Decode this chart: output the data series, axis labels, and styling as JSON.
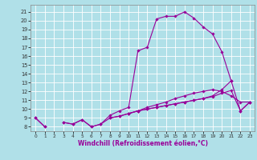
{
  "xlabel": "Windchill (Refroidissement éolien,°C)",
  "color": "#990099",
  "bg_color": "#b0e0e8",
  "grid_color": "#ffffff",
  "ylim": [
    7.5,
    21.8
  ],
  "xlim": [
    -0.5,
    23.5
  ],
  "yticks": [
    8,
    9,
    10,
    11,
    12,
    13,
    14,
    15,
    16,
    17,
    18,
    19,
    20,
    21
  ],
  "xticks": [
    0,
    1,
    2,
    3,
    4,
    5,
    6,
    7,
    8,
    9,
    10,
    11,
    12,
    13,
    14,
    15,
    16,
    17,
    18,
    19,
    20,
    21,
    22,
    23
  ],
  "y_main": [
    9.0,
    8.0,
    null,
    8.5,
    8.3,
    8.8,
    8.0,
    8.3,
    9.3,
    9.8,
    10.2,
    16.6,
    17.0,
    20.2,
    20.5,
    20.5,
    21.0,
    20.3,
    19.3,
    18.5,
    16.5,
    13.2,
    null,
    null
  ],
  "y_flat1": [
    9.0,
    8.0,
    null,
    8.5,
    8.3,
    8.8,
    8.0,
    8.3,
    9.0,
    9.2,
    9.5,
    9.8,
    10.2,
    10.5,
    10.8,
    11.2,
    11.5,
    11.8,
    12.0,
    12.2,
    12.0,
    11.5,
    10.8,
    10.8
  ],
  "y_flat2": [
    null,
    null,
    null,
    null,
    null,
    null,
    null,
    null,
    9.0,
    9.2,
    9.5,
    9.8,
    10.0,
    10.2,
    10.4,
    10.6,
    10.8,
    11.0,
    11.2,
    11.4,
    11.8,
    12.1,
    9.8,
    10.8
  ],
  "y_flat3": [
    null,
    null,
    null,
    null,
    null,
    null,
    null,
    null,
    null,
    null,
    9.5,
    9.8,
    10.0,
    10.2,
    10.4,
    10.6,
    10.8,
    11.0,
    11.2,
    11.5,
    12.2,
    13.2,
    9.8,
    10.8
  ]
}
